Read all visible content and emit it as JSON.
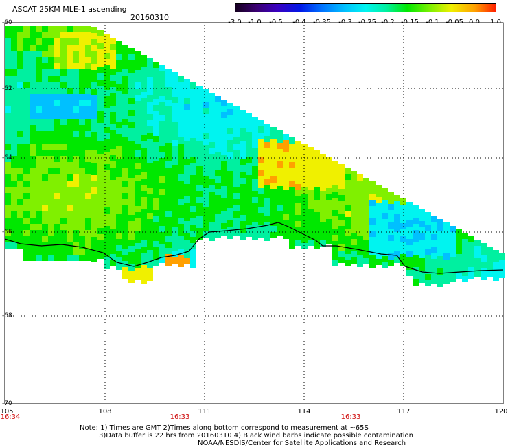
{
  "header": {
    "title": "ASCAT 25KM MLE-1 ascending",
    "date": "20160310"
  },
  "colorbar": {
    "labels": [
      "-3.0",
      "-1.0",
      "-0.5",
      "-0.4",
      "-0.35",
      "-0.3",
      "-0.25",
      "-0.2",
      "-0.15",
      "-0.1",
      "-0.05",
      "0.0",
      "1.0"
    ],
    "colors": [
      "#150020",
      "#3a0070",
      "#3a00c0",
      "#0018e8",
      "#0070ff",
      "#00c0ff",
      "#00f4f0",
      "#00f0a0",
      "#00e800",
      "#80f000",
      "#f0f000",
      "#ffa000",
      "#ff2000"
    ]
  },
  "map": {
    "lat_labels": [
      "-60",
      "-62",
      "-64",
      "-66",
      "-68",
      "-70"
    ],
    "lon_labels": [
      "105",
      "108",
      "111",
      "114",
      "117",
      "120"
    ],
    "time_labels": [
      "16:34",
      "16:33",
      "16:33"
    ]
  },
  "notes": {
    "line1": "Note: 1) Times are GMT 2)Times along bottom correspond to measurement at ~65S",
    "line2": "3)Data buffer is 22 hrs from 20160310 4) Black wind barbs indicate possible contamination",
    "line3": "NOAA/NESDIS/Center for Satellite Applications and Research"
  }
}
